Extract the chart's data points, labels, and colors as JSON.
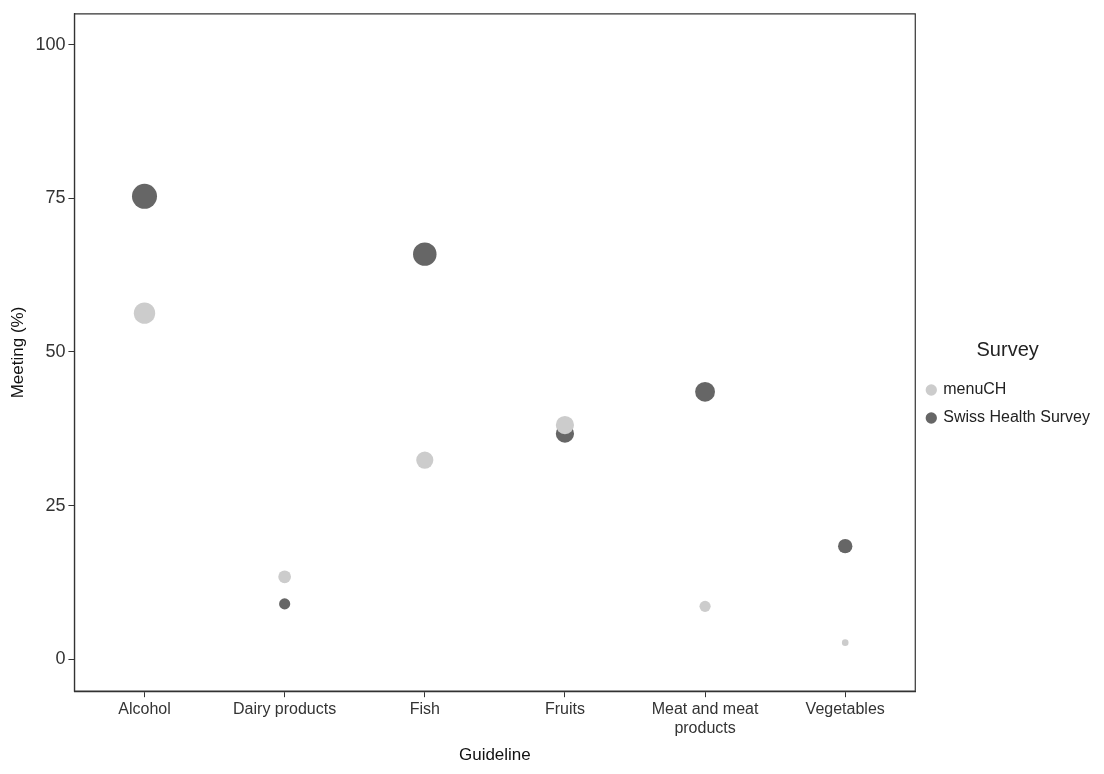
{
  "chart_data": {
    "type": "bubble",
    "xlabel": "Guideline",
    "ylabel": "Meeting (%)",
    "legend_title": "Survey",
    "legend": "right",
    "grid": false,
    "marker": "circle",
    "categories": [
      "Alcohol",
      "Dairy products",
      "Fish",
      "Fruits",
      "Meat and meat products",
      "Vegetables"
    ],
    "ylim": [
      -5.2,
      105
    ],
    "yticks": [
      0,
      25,
      50,
      75,
      100
    ],
    "series": [
      {
        "name": "menuCH",
        "color": "#cccccc",
        "values": [
          56.3,
          13.4,
          32.4,
          38.1,
          8.6,
          2.7
        ],
        "sizes": [
          0.73,
          0.26,
          0.47,
          0.53,
          0.2,
          0.07
        ]
      },
      {
        "name": "Swiss Health Survey",
        "color": "#666666",
        "values": [
          75.3,
          9.0,
          65.9,
          36.7,
          43.5,
          18.4
        ],
        "sizes": [
          1,
          0.2,
          0.88,
          0.53,
          0.63,
          0.33
        ]
      }
    ]
  }
}
